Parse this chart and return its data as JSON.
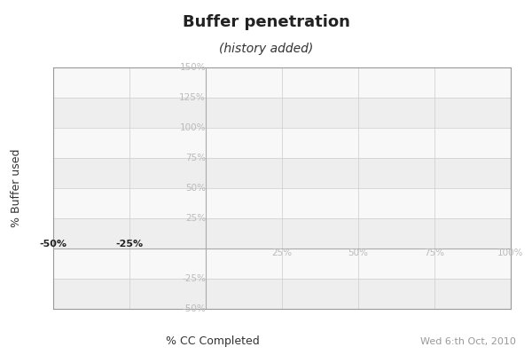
{
  "title": "Buffer penetration",
  "subtitle": "(history added)",
  "xlabel": "% CC Completed",
  "date_label": "Wed 6:th Oct, 2010",
  "ylabel": "% Buffer used",
  "xlim": [
    -50,
    100
  ],
  "ylim": [
    -50,
    150
  ],
  "x_ticks": [
    -50,
    -25,
    0,
    25,
    50,
    75,
    100
  ],
  "y_ticks": [
    -50,
    -25,
    0,
    25,
    50,
    75,
    100,
    125,
    150
  ],
  "x_tick_labels": [
    "-50%",
    "-25%",
    "",
    "25%",
    "50%",
    "75%",
    "100%"
  ],
  "y_tick_labels": [
    "-50%",
    "-25%",
    "",
    "25%",
    "50%",
    "75%",
    "100%",
    "125%",
    "150%"
  ],
  "band_color_light": "#eeeeee",
  "band_color_white": "#f8f8f8",
  "axis_line_color": "#aaaaaa",
  "tick_label_color_neg_x": "#222222",
  "tick_label_color_pos_x": "#bbbbbb",
  "tick_label_color_y": "#bbbbbb",
  "background_color": "#ffffff",
  "title_fontsize": 13,
  "subtitle_fontsize": 10,
  "xlabel_fontsize": 9,
  "ylabel_fontsize": 9,
  "date_fontsize": 8,
  "tick_fontsize": 7.5
}
